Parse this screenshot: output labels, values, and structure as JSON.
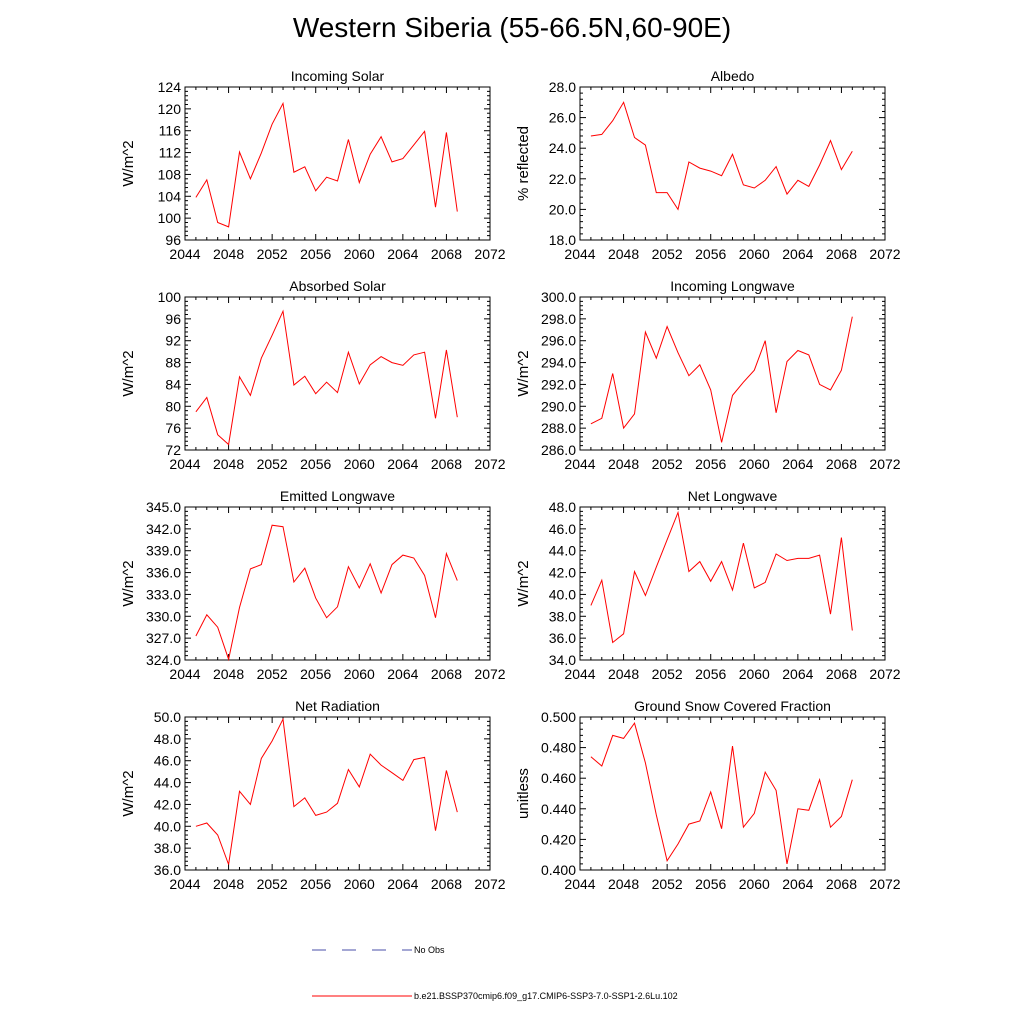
{
  "title": "Western Siberia (55-66.5N,60-90E)",
  "x_ticks": [
    "2044",
    "2048",
    "2052",
    "2056",
    "2060",
    "2064",
    "2068",
    "2072"
  ],
  "legend": [
    {
      "label": "No Obs",
      "color": "#4a4fa8",
      "dash": true
    },
    {
      "label": "b.e21.BSSP370cmip6.f09_g17.CMIP6-SSP3-7.0-SSP1-2.6Lu.102",
      "color": "#ff0000",
      "dash": false
    }
  ],
  "chart_data": [
    {
      "type": "line",
      "title": "Incoming Solar",
      "ylabel": "W/m^2",
      "xlim": [
        2044,
        2072
      ],
      "ylim": [
        96,
        124
      ],
      "y_ticks": [
        "96",
        "100",
        "104",
        "108",
        "112",
        "116",
        "120",
        "124"
      ],
      "x": [
        2045,
        2046,
        2047,
        2048,
        2049,
        2050,
        2051,
        2052,
        2053,
        2054,
        2055,
        2056,
        2057,
        2058,
        2059,
        2060,
        2061,
        2062,
        2063,
        2064,
        2065,
        2066,
        2067,
        2068,
        2069
      ],
      "series": [
        {
          "color": "#ff0000",
          "values": [
            103.8,
            107.0,
            99.2,
            98.4,
            112.1,
            107.2,
            111.9,
            117.2,
            121.0,
            108.4,
            109.4,
            105.0,
            107.5,
            106.8,
            114.4,
            106.5,
            111.7,
            114.9,
            110.3,
            110.9,
            113.4,
            115.9,
            102.0,
            115.7,
            101.2
          ]
        }
      ]
    },
    {
      "type": "line",
      "title": "Albedo",
      "ylabel": "% reflected",
      "xlim": [
        2044,
        2072
      ],
      "ylim": [
        18,
        28
      ],
      "y_ticks": [
        "18.0",
        "20.0",
        "22.0",
        "24.0",
        "26.0",
        "28.0"
      ],
      "x": [
        2045,
        2046,
        2047,
        2048,
        2049,
        2050,
        2051,
        2052,
        2053,
        2054,
        2055,
        2056,
        2057,
        2058,
        2059,
        2060,
        2061,
        2062,
        2063,
        2064,
        2065,
        2066,
        2067,
        2068,
        2069
      ],
      "series": [
        {
          "color": "#ff0000",
          "values": [
            24.8,
            24.9,
            25.8,
            27.0,
            24.7,
            24.2,
            21.1,
            21.1,
            20.0,
            23.1,
            22.7,
            22.5,
            22.2,
            23.6,
            21.6,
            21.4,
            21.9,
            22.8,
            21.0,
            21.9,
            21.5,
            22.9,
            24.5,
            22.6,
            23.8
          ]
        }
      ]
    },
    {
      "type": "line",
      "title": "Absorbed Solar",
      "ylabel": "W/m^2",
      "xlim": [
        2044,
        2072
      ],
      "ylim": [
        72,
        100
      ],
      "y_ticks": [
        "72",
        "76",
        "80",
        "84",
        "88",
        "92",
        "96",
        "100"
      ],
      "x": [
        2045,
        2046,
        2047,
        2048,
        2049,
        2050,
        2051,
        2052,
        2053,
        2054,
        2055,
        2056,
        2057,
        2058,
        2059,
        2060,
        2061,
        2062,
        2063,
        2064,
        2065,
        2066,
        2067,
        2068,
        2069
      ],
      "series": [
        {
          "color": "#ff0000",
          "values": [
            79.0,
            81.6,
            74.8,
            73.0,
            85.4,
            82.0,
            88.8,
            93.0,
            97.4,
            83.9,
            85.5,
            82.3,
            84.4,
            82.5,
            89.9,
            84.1,
            87.6,
            89.1,
            88.0,
            87.5,
            89.4,
            89.9,
            77.8,
            90.3,
            78.0
          ]
        }
      ]
    },
    {
      "type": "line",
      "title": "Incoming Longwave",
      "ylabel": "W/m^2",
      "xlim": [
        2044,
        2072
      ],
      "ylim": [
        286,
        300
      ],
      "y_ticks": [
        "286.0",
        "288.0",
        "290.0",
        "292.0",
        "294.0",
        "296.0",
        "298.0",
        "300.0"
      ],
      "x": [
        2045,
        2046,
        2047,
        2048,
        2049,
        2050,
        2051,
        2052,
        2053,
        2054,
        2055,
        2056,
        2057,
        2058,
        2059,
        2060,
        2061,
        2062,
        2063,
        2064,
        2065,
        2066,
        2067,
        2068,
        2069
      ],
      "series": [
        {
          "color": "#ff0000",
          "values": [
            288.4,
            288.9,
            293.0,
            288.0,
            289.3,
            296.8,
            294.4,
            297.3,
            294.9,
            292.8,
            293.8,
            291.5,
            286.7,
            291.0,
            292.2,
            293.3,
            296.0,
            289.4,
            294.1,
            295.1,
            294.7,
            292.0,
            291.5,
            293.3,
            298.2
          ]
        }
      ]
    },
    {
      "type": "line",
      "title": "Emitted Longwave",
      "ylabel": "W/m^2",
      "xlim": [
        2044,
        2072
      ],
      "ylim": [
        324,
        345
      ],
      "y_ticks": [
        "324.0",
        "327.0",
        "330.0",
        "333.0",
        "336.0",
        "339.0",
        "342.0",
        "345.0"
      ],
      "x": [
        2045,
        2046,
        2047,
        2048,
        2049,
        2050,
        2051,
        2052,
        2053,
        2054,
        2055,
        2056,
        2057,
        2058,
        2059,
        2060,
        2061,
        2062,
        2063,
        2064,
        2065,
        2066,
        2067,
        2068,
        2069
      ],
      "series": [
        {
          "color": "#ff0000",
          "values": [
            327.3,
            330.2,
            328.5,
            324.1,
            331.2,
            336.5,
            337.1,
            342.5,
            342.3,
            334.7,
            336.6,
            332.5,
            329.8,
            331.3,
            336.8,
            333.9,
            337.2,
            333.2,
            337.1,
            338.4,
            338.0,
            335.6,
            329.8,
            338.6,
            334.9
          ]
        }
      ]
    },
    {
      "type": "line",
      "title": "Net Longwave",
      "ylabel": "W/m^2",
      "xlim": [
        2044,
        2072
      ],
      "ylim": [
        34,
        48
      ],
      "y_ticks": [
        "34.0",
        "36.0",
        "38.0",
        "40.0",
        "42.0",
        "44.0",
        "46.0",
        "48.0"
      ],
      "x": [
        2045,
        2046,
        2047,
        2048,
        2049,
        2050,
        2051,
        2052,
        2053,
        2054,
        2055,
        2056,
        2057,
        2058,
        2059,
        2060,
        2061,
        2062,
        2063,
        2064,
        2065,
        2066,
        2067,
        2068,
        2069
      ],
      "series": [
        {
          "color": "#ff0000",
          "values": [
            39.0,
            41.3,
            35.6,
            36.4,
            42.1,
            39.9,
            42.5,
            45.0,
            47.5,
            42.1,
            43.0,
            41.2,
            43.0,
            40.4,
            44.7,
            40.6,
            41.1,
            43.7,
            43.1,
            43.3,
            43.3,
            43.6,
            38.2,
            45.2,
            36.7
          ]
        }
      ]
    },
    {
      "type": "line",
      "title": "Net Radiation",
      "ylabel": "W/m^2",
      "xlim": [
        2044,
        2072
      ],
      "ylim": [
        36,
        50
      ],
      "y_ticks": [
        "36.0",
        "38.0",
        "40.0",
        "42.0",
        "44.0",
        "46.0",
        "48.0",
        "50.0"
      ],
      "x": [
        2045,
        2046,
        2047,
        2048,
        2049,
        2050,
        2051,
        2052,
        2053,
        2054,
        2055,
        2056,
        2057,
        2058,
        2059,
        2060,
        2061,
        2062,
        2063,
        2064,
        2065,
        2066,
        2067,
        2068,
        2069
      ],
      "series": [
        {
          "color": "#ff0000",
          "values": [
            40.0,
            40.3,
            39.2,
            36.5,
            43.2,
            42.0,
            46.2,
            47.8,
            49.8,
            41.8,
            42.6,
            41.0,
            41.3,
            42.1,
            45.2,
            43.6,
            46.6,
            45.6,
            44.9,
            44.2,
            46.1,
            46.3,
            39.6,
            45.1,
            41.3
          ]
        }
      ]
    },
    {
      "type": "line",
      "title": "Ground Snow Covered Fraction",
      "ylabel": "unitless",
      "xlim": [
        2044,
        2072
      ],
      "ylim": [
        0.4,
        0.5
      ],
      "y_ticks": [
        "0.400",
        "0.420",
        "0.440",
        "0.460",
        "0.480",
        "0.500"
      ],
      "x": [
        2045,
        2046,
        2047,
        2048,
        2049,
        2050,
        2051,
        2052,
        2053,
        2054,
        2055,
        2056,
        2057,
        2058,
        2059,
        2060,
        2061,
        2062,
        2063,
        2064,
        2065,
        2066,
        2067,
        2068,
        2069
      ],
      "series": [
        {
          "color": "#ff0000",
          "values": [
            0.474,
            0.468,
            0.488,
            0.486,
            0.496,
            0.47,
            0.436,
            0.406,
            0.417,
            0.43,
            0.432,
            0.451,
            0.427,
            0.481,
            0.428,
            0.437,
            0.464,
            0.452,
            0.404,
            0.44,
            0.439,
            0.459,
            0.428,
            0.435,
            0.459
          ]
        }
      ]
    }
  ]
}
